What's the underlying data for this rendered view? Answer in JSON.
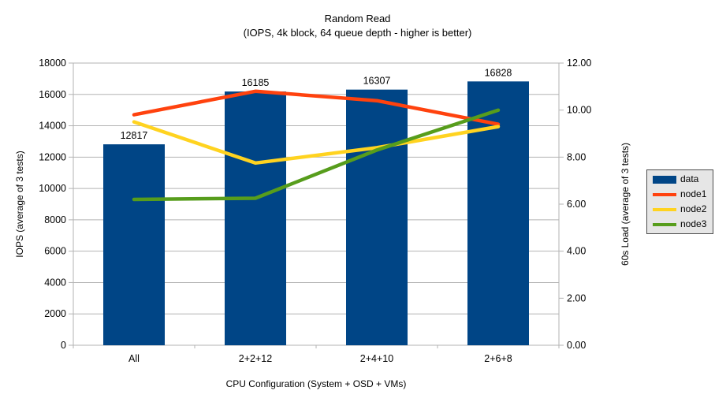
{
  "title": "Random Read",
  "subtitle": "(IOPS, 4k block, 64 queue depth - higher is better)",
  "colors": {
    "data": "#004586",
    "node1": "#ff420e",
    "node2": "#ffd320",
    "node3": "#579d1c",
    "grid": "#b3b3b3",
    "axis": "#b3b3b3",
    "legend_bg": "#e6e6e6",
    "legend_border": "#4d4d4d",
    "text": "#000000"
  },
  "chart_data": {
    "type": "bar+line",
    "categories": [
      "All",
      "2+2+12",
      "2+4+10",
      "2+6+8"
    ],
    "bar_series": {
      "name": "data",
      "axis": "left",
      "values": [
        12817,
        16185,
        16307,
        16828
      ],
      "labels": [
        "12817",
        "16185",
        "16307",
        "16828"
      ]
    },
    "line_series": [
      {
        "name": "node1",
        "axis": "right",
        "values": [
          9.8,
          10.8,
          10.4,
          9.4
        ]
      },
      {
        "name": "node2",
        "axis": "right",
        "values": [
          9.5,
          7.75,
          8.4,
          9.3
        ]
      },
      {
        "name": "node3",
        "axis": "right",
        "values": [
          6.2,
          6.25,
          8.3,
          10.0
        ]
      }
    ],
    "left_axis": {
      "label": "IOPS (average of 3 tests)",
      "min": 0,
      "max": 18000,
      "step": 2000,
      "decimals": 0
    },
    "right_axis": {
      "label": "60s Load (average of 3 tests)",
      "min": 0,
      "max": 12,
      "step": 2,
      "decimals": 2
    },
    "x_axis": {
      "label": "CPU Configuration (System + OSD + VMs)"
    },
    "legend": [
      "data",
      "node1",
      "node2",
      "node3"
    ],
    "legend_position": "right",
    "grid": true
  }
}
